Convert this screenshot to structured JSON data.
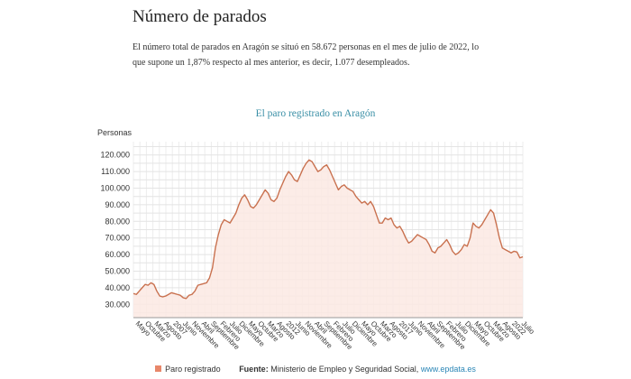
{
  "page": {
    "title": "Número de parados",
    "intro": "El número total de parados en Aragón se situó en 58.672 personas en el mes de julio de 2022, lo que supone un 1,87% respecto al mes anterior, es decir, 1.077 desempleados."
  },
  "footer": {
    "legend_label": "Paro registrado",
    "source_label": "Fuente:",
    "source_text": "Ministerio de Empleo y Seguridad Social,",
    "source_link": "www.epdata.es"
  },
  "colors": {
    "line": "#c9714f",
    "fill": "#fce9e3",
    "title": "#3a8fa6",
    "legend": "#e8876a"
  },
  "chart_data": {
    "type": "area",
    "title": "El paro registrado en Aragón",
    "ylabel": "Personas",
    "ylim": [
      22000,
      128000
    ],
    "yticks": [
      30000,
      40000,
      50000,
      60000,
      70000,
      80000,
      90000,
      100000,
      110000,
      120000
    ],
    "ytick_labels": [
      "30.000",
      "40.000",
      "50.000",
      "60.000",
      "70.000",
      "80.000",
      "90.000",
      "100.000",
      "110.000",
      "120.000"
    ],
    "grid": true,
    "legend": "bottom",
    "xtick_labels": [
      "Mayo",
      "Octubre",
      "Marzo",
      "Agosto",
      "2007",
      "Junio",
      "Noviembre",
      "Abril",
      "Septiembre",
      "Febrero",
      "Julio",
      "Diciembre",
      "Mayo",
      "Octubre",
      "Marzo",
      "Agosto",
      "2012",
      "Junio",
      "Noviembre",
      "Abril",
      "Septiembre",
      "Febrero",
      "Julio",
      "Diciembre",
      "Mayo",
      "Octubre",
      "Marzo",
      "Agosto",
      "2017",
      "Junio",
      "Noviembre",
      "Abril",
      "Septiembre",
      "Febrero",
      "Julio",
      "Diciembre",
      "Mayo",
      "Octubre",
      "Marzo",
      "Agosto",
      "2022",
      "Julio"
    ],
    "series": [
      {
        "name": "Paro registrado",
        "values": [
          36500,
          36000,
          38000,
          40000,
          42000,
          41500,
          43000,
          42000,
          38000,
          35000,
          34500,
          35000,
          36000,
          37000,
          36500,
          36000,
          35500,
          34000,
          33500,
          35500,
          36000,
          38000,
          41500,
          42000,
          42500,
          43000,
          46000,
          52000,
          64000,
          72000,
          78000,
          81000,
          80000,
          79000,
          82000,
          85000,
          90000,
          94000,
          96000,
          93000,
          89000,
          88000,
          90000,
          93000,
          96000,
          99000,
          97000,
          93000,
          92000,
          94000,
          99000,
          103000,
          107000,
          110000,
          108000,
          105000,
          104000,
          108000,
          112000,
          115000,
          117000,
          116000,
          113000,
          110000,
          111000,
          113000,
          114000,
          111000,
          107000,
          103000,
          99000,
          101000,
          102000,
          100000,
          99000,
          98000,
          95000,
          93000,
          91000,
          92000,
          90000,
          92000,
          89000,
          84000,
          79000,
          79000,
          82000,
          81000,
          82000,
          78000,
          76000,
          77000,
          74000,
          70000,
          67000,
          68000,
          70000,
          72000,
          71000,
          70000,
          69000,
          66000,
          62000,
          61000,
          64000,
          65000,
          67000,
          69000,
          66000,
          62000,
          60000,
          61000,
          63000,
          66000,
          65000,
          70000,
          79000,
          77000,
          76000,
          78000,
          81000,
          84000,
          87000,
          85000,
          78000,
          70000,
          64000,
          63000,
          62000,
          61000,
          62000,
          61500,
          58000,
          58672
        ]
      }
    ]
  }
}
